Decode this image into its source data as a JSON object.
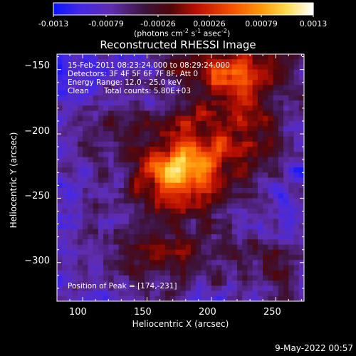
{
  "colorbar": {
    "ticks": [
      "-0.0013",
      "-0.00079",
      "-0.00026",
      "0.00026",
      "0.00079",
      "0.0013"
    ],
    "units_prefix": "(photons cm",
    "units_exp1": "-2",
    "units_mid": " s",
    "units_exp2": "-1",
    "units_mid2": " asec",
    "units_exp3": "-2",
    "units_suffix": ")"
  },
  "chart_data": {
    "type": "heatmap",
    "title": "Reconstructed RHESSI Image",
    "xlabel": "Heliocentric X (arcsec)",
    "ylabel": "Heliocentric Y (arcsec)",
    "xlim": [
      80,
      272
    ],
    "ylim": [
      -330,
      -138
    ],
    "x_ticks": [
      100,
      150,
      200,
      250
    ],
    "y_ticks": [
      -150,
      -200,
      -250,
      -300
    ],
    "x_tick_labels": [
      "100",
      "150",
      "200",
      "250"
    ],
    "y_tick_labels": [
      "−150",
      "−200",
      "−250",
      "−300"
    ],
    "colorbar_range": [
      -0.0013,
      0.0013
    ],
    "colormap": "red-temperature (blue/purple to white)",
    "peak": [
      174,
      -231
    ],
    "annotations": {
      "time": "15-Feb-2011 08:23:24.000 to 08:29:24.000",
      "detectors": "Detectors: 3F 4F 5F 6F 7F 8F, Att 0",
      "energy": "Energy Range: 12.0 - 25.0 keV",
      "method": "Clean",
      "counts": "Total counts: 5.80E+03",
      "peak_text": "Position of Peak = [174,-231]"
    }
  },
  "footer": {
    "date": "9-May-2022 00:57"
  }
}
